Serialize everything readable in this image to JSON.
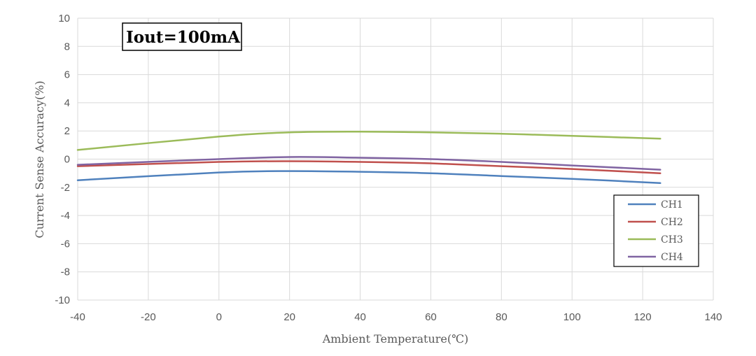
{
  "chart_data": {
    "type": "line",
    "title": "",
    "annotation": "Iout=100mA",
    "xlabel": "Ambient Temperature(℃)",
    "ylabel": "Current Sense Accuracy(%)",
    "xlim": [
      -40,
      140
    ],
    "ylim": [
      -10,
      10
    ],
    "xticks": [
      "-40",
      "-20",
      "0",
      "20",
      "40",
      "60",
      "80",
      "100",
      "120",
      "140"
    ],
    "yticks": [
      "10",
      "8",
      "6",
      "4",
      "2",
      "0",
      "-2",
      "-4",
      "-6",
      "-8",
      "-10"
    ],
    "grid": true,
    "legend_position": "bottom-right",
    "x": [
      -40,
      0,
      20,
      40,
      60,
      80,
      100,
      125
    ],
    "series": [
      {
        "name": "CH1",
        "color": "#4f81bd",
        "values": [
          -1.5,
          -0.95,
          -0.85,
          -0.9,
          -1.0,
          -1.2,
          -1.4,
          -1.7
        ]
      },
      {
        "name": "CH2",
        "color": "#c0504d",
        "values": [
          -0.5,
          -0.2,
          -0.15,
          -0.2,
          -0.3,
          -0.5,
          -0.7,
          -1.0
        ]
      },
      {
        "name": "CH3",
        "color": "#9bbb59",
        "values": [
          0.65,
          1.6,
          1.9,
          1.95,
          1.9,
          1.8,
          1.65,
          1.45
        ]
      },
      {
        "name": "CH4",
        "color": "#8064a2",
        "values": [
          -0.4,
          0.0,
          0.15,
          0.1,
          0.0,
          -0.2,
          -0.45,
          -0.75
        ]
      }
    ]
  }
}
